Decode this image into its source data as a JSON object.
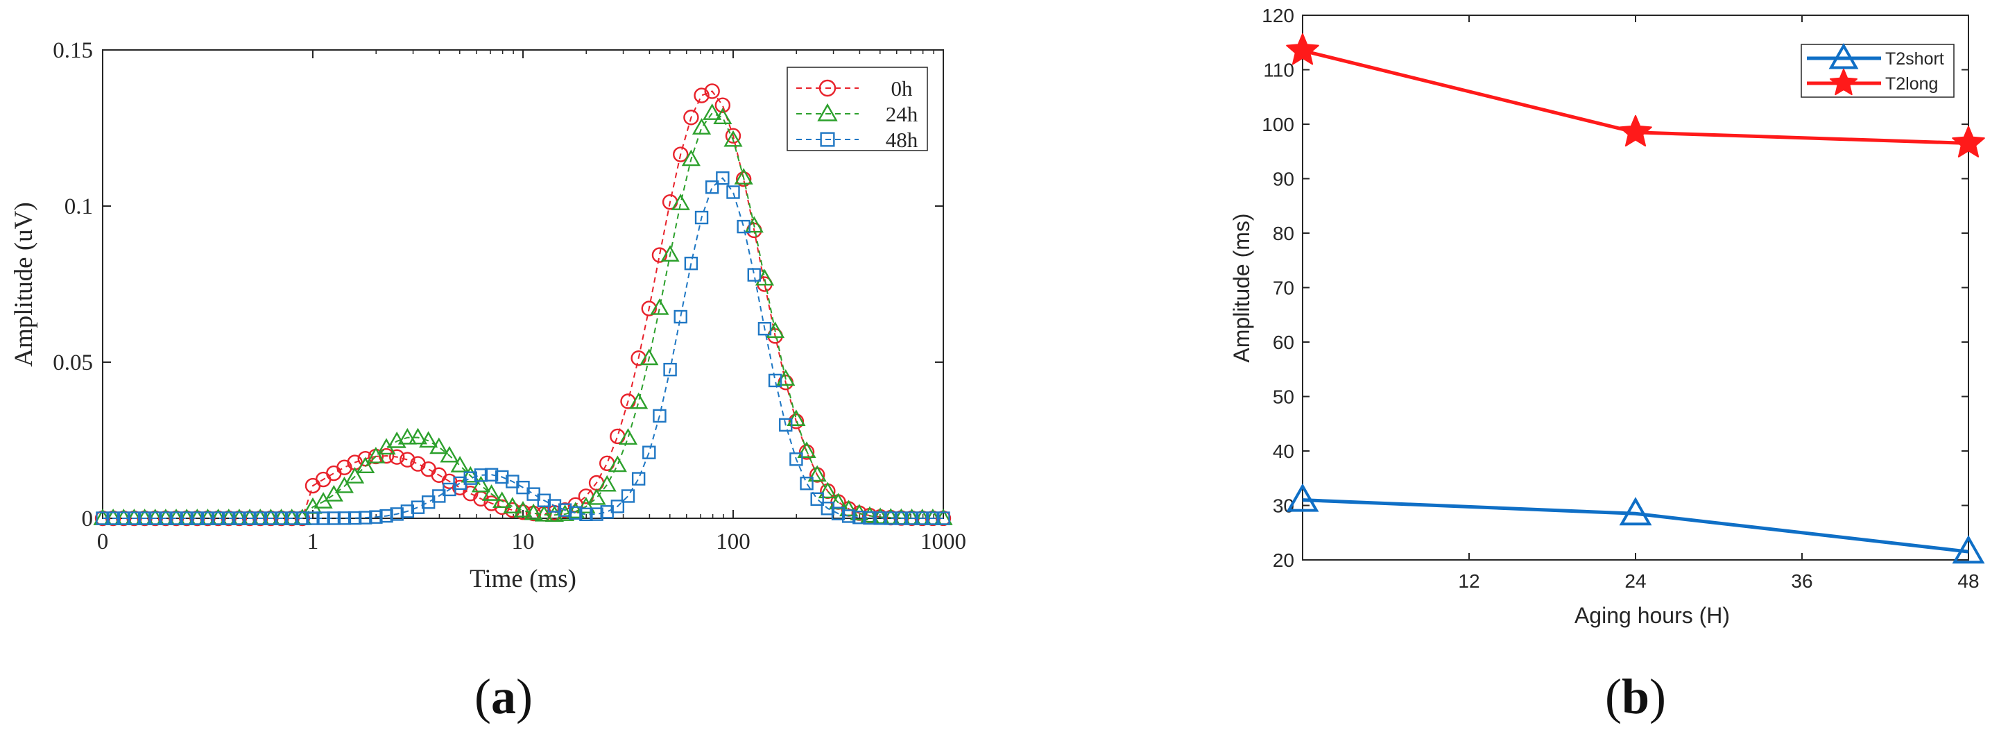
{
  "chart_data": [
    {
      "type": "line",
      "panel_label": "(a)",
      "xscale": "log-like (0 mapped at origin)",
      "xlabel": "Time (ms)",
      "ylabel": "Amplitude (uV)",
      "x_ticks": [
        "0",
        "1",
        "10",
        "100",
        "1000"
      ],
      "y_ticks": [
        "0",
        "0.05",
        "0.1",
        "0.15"
      ],
      "ylim": [
        0,
        0.15
      ],
      "legend_position": "top-right",
      "series": [
        {
          "name": "0h",
          "color": "#e8222b",
          "marker": "circle",
          "line": "dashed",
          "components": [
            {
              "amp": 0.02,
              "center_ms": 2.2,
              "width_dec": 0.3
            },
            {
              "amp": 0.137,
              "center_ms": 77,
              "width_dec": 0.24
            }
          ]
        },
        {
          "name": "24h",
          "color": "#2ca02c",
          "marker": "triangle",
          "line": "dashed",
          "components": [
            {
              "amp": 0.026,
              "center_ms": 3.0,
              "width_dec": 0.24
            },
            {
              "amp": 0.13,
              "center_ms": 82,
              "width_dec": 0.23
            }
          ]
        },
        {
          "name": "48h",
          "color": "#1f77c4",
          "marker": "square",
          "line": "dashed",
          "components": [
            {
              "amp": 0.014,
              "center_ms": 6.8,
              "width_dec": 0.2
            },
            {
              "amp": 0.109,
              "center_ms": 88,
              "width_dec": 0.19
            }
          ]
        }
      ]
    },
    {
      "type": "line",
      "panel_label": "(b)",
      "xlabel": "Aging hours (H)",
      "ylabel": "Amplitude (ms)",
      "x_ticks": [
        "12",
        "24",
        "36",
        "48"
      ],
      "y_ticks": [
        "20",
        "30",
        "40",
        "50",
        "60",
        "70",
        "80",
        "90",
        "100",
        "110",
        "120"
      ],
      "xlim": [
        0,
        48
      ],
      "ylim": [
        20,
        120
      ],
      "legend_position": "top-right",
      "x": [
        0,
        24,
        48
      ],
      "series": [
        {
          "name": "T2short",
          "color": "#0f6fc6",
          "marker": "triangle",
          "values": [
            31,
            28.5,
            21.5
          ]
        },
        {
          "name": "T2long",
          "color": "#ff1a1a",
          "marker": "star",
          "values": [
            113.5,
            98.5,
            96.5
          ]
        }
      ]
    }
  ]
}
